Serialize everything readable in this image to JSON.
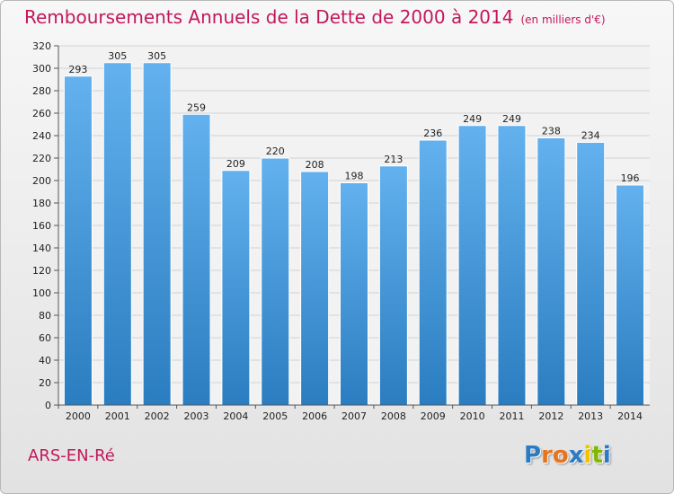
{
  "chart_data": {
    "type": "bar",
    "title": "Remboursements Annuels de la Dette de 2000 à 2014",
    "unit_note": "(en milliers d'€)",
    "categories": [
      "2000",
      "2001",
      "2002",
      "2003",
      "2004",
      "2005",
      "2006",
      "2007",
      "2008",
      "2009",
      "2010",
      "2011",
      "2012",
      "2013",
      "2014"
    ],
    "values": [
      293,
      305,
      305,
      259,
      209,
      220,
      208,
      198,
      213,
      236,
      249,
      249,
      238,
      234,
      196
    ],
    "ylim": [
      0,
      320
    ],
    "ytick_step": 20,
    "grid": true,
    "bar_color": "#3d95d6",
    "xlabel": "",
    "ylabel": ""
  },
  "footer": {
    "commune": "ARS-EN-Ré",
    "logo_letters": [
      "P",
      "r",
      "o",
      "x",
      "i",
      "t",
      "i"
    ],
    "logo_colors": [
      "#2b7bc4",
      "#e8731d",
      "#e8731d",
      "#2b7bc4",
      "#f2c200",
      "#7fb800",
      "#2b7bc4"
    ]
  }
}
